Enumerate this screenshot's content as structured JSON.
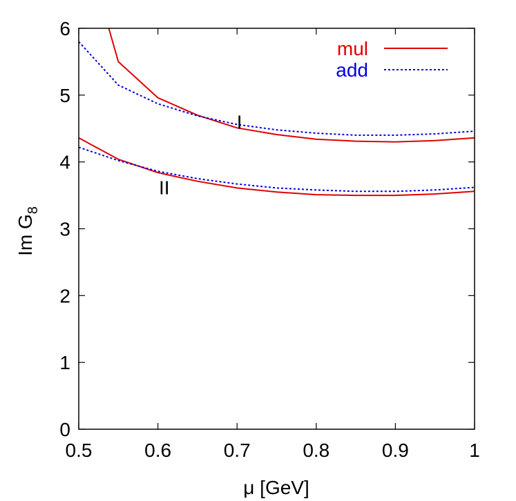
{
  "chart_data": {
    "type": "line",
    "xlabel": "μ [GeV]",
    "ylabel_main": "Im G",
    "ylabel_sub": "8",
    "xlim": [
      0.5,
      1.0
    ],
    "ylim": [
      0,
      6
    ],
    "x_ticks": [
      0.5,
      0.6,
      0.7,
      0.8,
      0.9,
      1.0
    ],
    "x_tick_labels": [
      "0.5",
      "0.6",
      "0.7",
      "0.8",
      "0.9",
      "1"
    ],
    "y_ticks": [
      0,
      1,
      2,
      3,
      4,
      5,
      6
    ],
    "y_tick_labels": [
      "0",
      "1",
      "2",
      "3",
      "4",
      "5",
      "6"
    ],
    "grid": false,
    "legend_position": "top-right",
    "legend": [
      {
        "label": "mul",
        "color": "#e00000",
        "style": "solid"
      },
      {
        "label": "add",
        "color": "#0000e0",
        "style": "dotted"
      }
    ],
    "annotations": [
      {
        "text": "I",
        "x": 0.703,
        "y": 4.6
      },
      {
        "text": "II",
        "x": 0.608,
        "y": 3.62
      }
    ],
    "series": [
      {
        "legend": "mul",
        "group": "I",
        "color": "#e00000",
        "style": "solid",
        "x": [
          0.538,
          0.55,
          0.6,
          0.65,
          0.7,
          0.75,
          0.8,
          0.85,
          0.9,
          0.95,
          1.0
        ],
        "y": [
          6.0,
          5.5,
          4.96,
          4.7,
          4.51,
          4.41,
          4.34,
          4.31,
          4.3,
          4.32,
          4.36
        ]
      },
      {
        "legend": "add",
        "group": "I",
        "color": "#0000e0",
        "style": "dotted",
        "x": [
          0.5,
          0.55,
          0.6,
          0.65,
          0.7,
          0.75,
          0.8,
          0.85,
          0.9,
          0.95,
          1.0
        ],
        "y": [
          5.8,
          5.15,
          4.87,
          4.69,
          4.56,
          4.48,
          4.43,
          4.4,
          4.4,
          4.42,
          4.46
        ]
      },
      {
        "legend": "mul",
        "group": "II",
        "color": "#e00000",
        "style": "solid",
        "x": [
          0.5,
          0.55,
          0.6,
          0.65,
          0.7,
          0.75,
          0.8,
          0.85,
          0.9,
          0.95,
          1.0
        ],
        "y": [
          4.36,
          4.04,
          3.84,
          3.71,
          3.61,
          3.55,
          3.51,
          3.5,
          3.5,
          3.52,
          3.56
        ]
      },
      {
        "legend": "add",
        "group": "II",
        "color": "#0000e0",
        "style": "dotted",
        "x": [
          0.5,
          0.55,
          0.6,
          0.65,
          0.7,
          0.75,
          0.8,
          0.85,
          0.9,
          0.95,
          1.0
        ],
        "y": [
          4.22,
          4.02,
          3.86,
          3.75,
          3.67,
          3.61,
          3.58,
          3.56,
          3.56,
          3.58,
          3.62
        ]
      }
    ]
  }
}
